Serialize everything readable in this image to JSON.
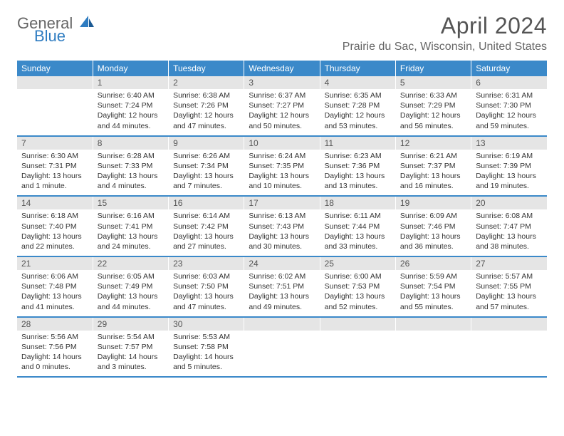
{
  "logo": {
    "general": "General",
    "blue": "Blue"
  },
  "title": "April 2024",
  "location": "Prairie du Sac, Wisconsin, United States",
  "colors": {
    "header_bg": "#3b89c9",
    "header_text": "#ffffff",
    "daynum_bg": "#e5e5e5",
    "border": "#3b89c9"
  },
  "type": "calendar",
  "columns": [
    "Sunday",
    "Monday",
    "Tuesday",
    "Wednesday",
    "Thursday",
    "Friday",
    "Saturday"
  ],
  "weeks": [
    [
      null,
      {
        "n": "1",
        "sr": "6:40 AM",
        "ss": "7:24 PM",
        "dl": "12 hours and 44 minutes."
      },
      {
        "n": "2",
        "sr": "6:38 AM",
        "ss": "7:26 PM",
        "dl": "12 hours and 47 minutes."
      },
      {
        "n": "3",
        "sr": "6:37 AM",
        "ss": "7:27 PM",
        "dl": "12 hours and 50 minutes."
      },
      {
        "n": "4",
        "sr": "6:35 AM",
        "ss": "7:28 PM",
        "dl": "12 hours and 53 minutes."
      },
      {
        "n": "5",
        "sr": "6:33 AM",
        "ss": "7:29 PM",
        "dl": "12 hours and 56 minutes."
      },
      {
        "n": "6",
        "sr": "6:31 AM",
        "ss": "7:30 PM",
        "dl": "12 hours and 59 minutes."
      }
    ],
    [
      {
        "n": "7",
        "sr": "6:30 AM",
        "ss": "7:31 PM",
        "dl": "13 hours and 1 minute."
      },
      {
        "n": "8",
        "sr": "6:28 AM",
        "ss": "7:33 PM",
        "dl": "13 hours and 4 minutes."
      },
      {
        "n": "9",
        "sr": "6:26 AM",
        "ss": "7:34 PM",
        "dl": "13 hours and 7 minutes."
      },
      {
        "n": "10",
        "sr": "6:24 AM",
        "ss": "7:35 PM",
        "dl": "13 hours and 10 minutes."
      },
      {
        "n": "11",
        "sr": "6:23 AM",
        "ss": "7:36 PM",
        "dl": "13 hours and 13 minutes."
      },
      {
        "n": "12",
        "sr": "6:21 AM",
        "ss": "7:37 PM",
        "dl": "13 hours and 16 minutes."
      },
      {
        "n": "13",
        "sr": "6:19 AM",
        "ss": "7:39 PM",
        "dl": "13 hours and 19 minutes."
      }
    ],
    [
      {
        "n": "14",
        "sr": "6:18 AM",
        "ss": "7:40 PM",
        "dl": "13 hours and 22 minutes."
      },
      {
        "n": "15",
        "sr": "6:16 AM",
        "ss": "7:41 PM",
        "dl": "13 hours and 24 minutes."
      },
      {
        "n": "16",
        "sr": "6:14 AM",
        "ss": "7:42 PM",
        "dl": "13 hours and 27 minutes."
      },
      {
        "n": "17",
        "sr": "6:13 AM",
        "ss": "7:43 PM",
        "dl": "13 hours and 30 minutes."
      },
      {
        "n": "18",
        "sr": "6:11 AM",
        "ss": "7:44 PM",
        "dl": "13 hours and 33 minutes."
      },
      {
        "n": "19",
        "sr": "6:09 AM",
        "ss": "7:46 PM",
        "dl": "13 hours and 36 minutes."
      },
      {
        "n": "20",
        "sr": "6:08 AM",
        "ss": "7:47 PM",
        "dl": "13 hours and 38 minutes."
      }
    ],
    [
      {
        "n": "21",
        "sr": "6:06 AM",
        "ss": "7:48 PM",
        "dl": "13 hours and 41 minutes."
      },
      {
        "n": "22",
        "sr": "6:05 AM",
        "ss": "7:49 PM",
        "dl": "13 hours and 44 minutes."
      },
      {
        "n": "23",
        "sr": "6:03 AM",
        "ss": "7:50 PM",
        "dl": "13 hours and 47 minutes."
      },
      {
        "n": "24",
        "sr": "6:02 AM",
        "ss": "7:51 PM",
        "dl": "13 hours and 49 minutes."
      },
      {
        "n": "25",
        "sr": "6:00 AM",
        "ss": "7:53 PM",
        "dl": "13 hours and 52 minutes."
      },
      {
        "n": "26",
        "sr": "5:59 AM",
        "ss": "7:54 PM",
        "dl": "13 hours and 55 minutes."
      },
      {
        "n": "27",
        "sr": "5:57 AM",
        "ss": "7:55 PM",
        "dl": "13 hours and 57 minutes."
      }
    ],
    [
      {
        "n": "28",
        "sr": "5:56 AM",
        "ss": "7:56 PM",
        "dl": "14 hours and 0 minutes."
      },
      {
        "n": "29",
        "sr": "5:54 AM",
        "ss": "7:57 PM",
        "dl": "14 hours and 3 minutes."
      },
      {
        "n": "30",
        "sr": "5:53 AM",
        "ss": "7:58 PM",
        "dl": "14 hours and 5 minutes."
      },
      null,
      null,
      null,
      null
    ]
  ],
  "labels": {
    "sunrise": "Sunrise:",
    "sunset": "Sunset:",
    "daylight": "Daylight:"
  }
}
